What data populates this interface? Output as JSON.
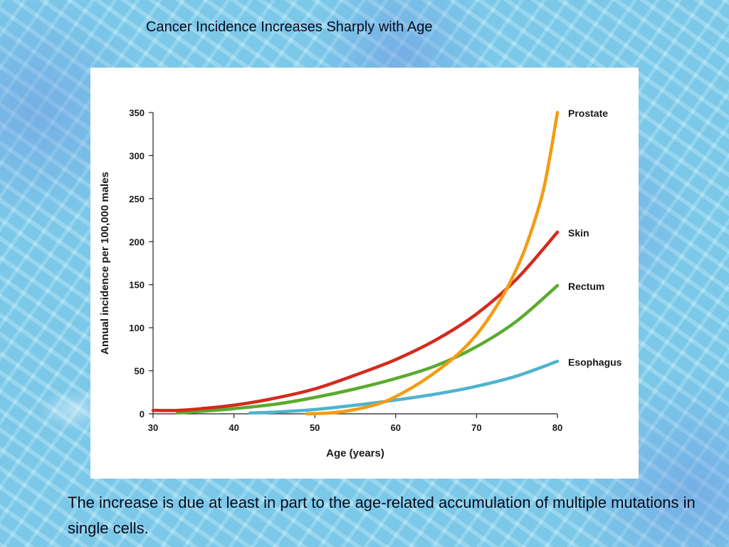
{
  "slide": {
    "title": "Cancer Incidence Increases Sharply with Age",
    "caption": "The increase is due at least in part to the age-related accumulation of multiple mutations in single cells."
  },
  "chart_data": {
    "type": "line",
    "title": "Cancer Incidence Increases Sharply with Age",
    "xlabel": "Age (years)",
    "ylabel": "Annual incidence per 100,000 males",
    "xlim": [
      30,
      80
    ],
    "ylim": [
      0,
      350
    ],
    "xticks": [
      30,
      40,
      50,
      60,
      70,
      80
    ],
    "yticks": [
      0,
      50,
      100,
      150,
      200,
      250,
      300,
      350
    ],
    "grid": false,
    "legend": "direct labels at right end of lines",
    "series": [
      {
        "name": "Prostate",
        "color": "#f39c12",
        "x": [
          49,
          52,
          55,
          58,
          60,
          63,
          66,
          68,
          70,
          72,
          74,
          76,
          78,
          79,
          80
        ],
        "y": [
          0,
          1,
          5,
          12,
          20,
          36,
          56,
          72,
          92,
          118,
          150,
          192,
          250,
          295,
          350
        ]
      },
      {
        "name": "Skin",
        "color": "#d42a1e",
        "x": [
          30,
          33,
          36,
          40,
          45,
          50,
          55,
          60,
          65,
          70,
          75,
          80
        ],
        "y": [
          4,
          4,
          6,
          10,
          18,
          29,
          45,
          63,
          86,
          116,
          157,
          211
        ]
      },
      {
        "name": "Rectum",
        "color": "#5aab2e",
        "x": [
          33,
          36,
          40,
          45,
          50,
          55,
          60,
          65,
          70,
          75,
          80
        ],
        "y": [
          1,
          3,
          6,
          11,
          19,
          29,
          41,
          56,
          78,
          108,
          149
        ]
      },
      {
        "name": "Esophagus",
        "color": "#4fb3cf",
        "x": [
          42,
          45,
          50,
          55,
          60,
          65,
          70,
          75,
          80
        ],
        "y": [
          1,
          2,
          5,
          10,
          16,
          23,
          32,
          44,
          61
        ]
      }
    ]
  }
}
